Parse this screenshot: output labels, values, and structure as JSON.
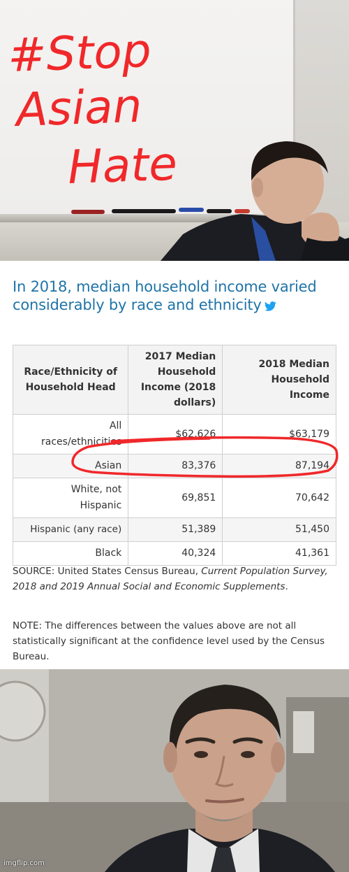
{
  "meme_caption": {
    "line1": "#Stop",
    "line2": "Asian",
    "line3": "Hate"
  },
  "article": {
    "title": "In 2018, median household income varied considerably by race and ethnicity",
    "share_icon": "twitter-bird-icon"
  },
  "table": {
    "headers": {
      "race": "Race/Ethnicity of Household Head",
      "income_2017": "2017 Median Household Income (2018 dollars)",
      "income_2018": "2018 Median Household Income"
    },
    "rows": [
      {
        "race": "All races/ethnicities",
        "income_2017": "$62,626",
        "income_2018": "$63,179"
      },
      {
        "race": "Asian",
        "income_2017": "83,376",
        "income_2018": "87,194"
      },
      {
        "race": "White, not Hispanic",
        "income_2017": "69,851",
        "income_2018": "70,642"
      },
      {
        "race": "Hispanic (any race)",
        "income_2017": "51,389",
        "income_2018": "51,450"
      },
      {
        "race": "Black",
        "income_2017": "40,324",
        "income_2018": "41,361"
      }
    ]
  },
  "source": {
    "prefix": "SOURCE: United States Census Bureau, ",
    "publication": "Current Population Survey, 2018 and 2019 Annual Social and Economic Supplements",
    "suffix": "."
  },
  "note": "NOTE: The differences between the values above are not all statistically significant at the confidence level used by the Census Bureau.",
  "watermark": "imgflip.com",
  "colors": {
    "marker_red": "#f0282a",
    "title_blue": "#1f74a7",
    "table_text": "#333333",
    "twitter_blue": "#1da1f2"
  }
}
